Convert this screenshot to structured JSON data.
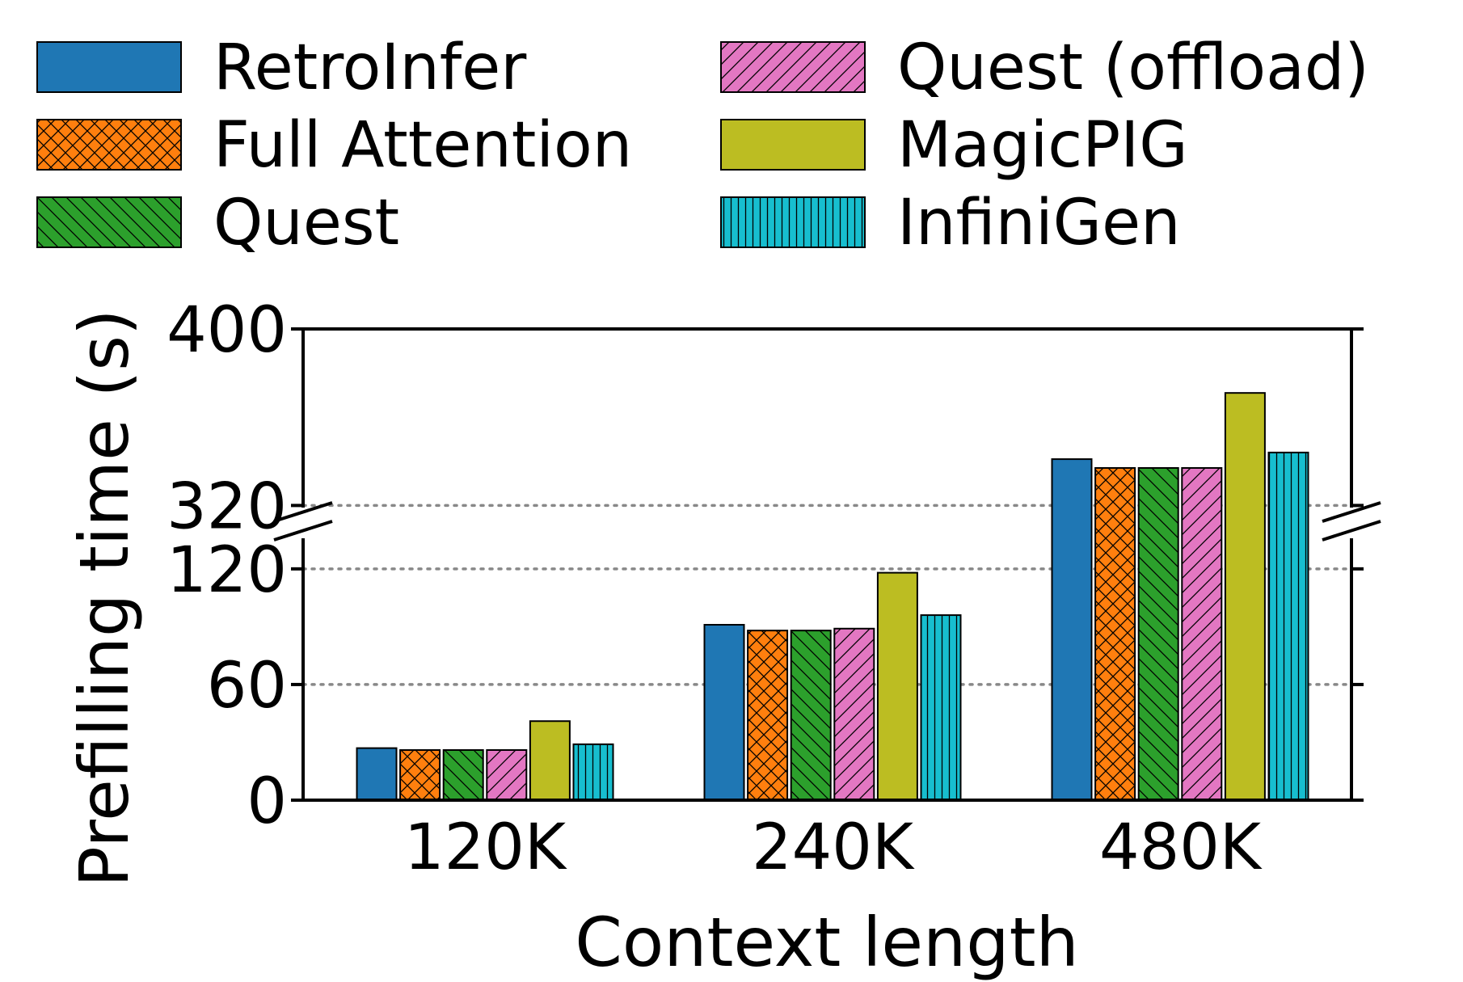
{
  "chart_data": {
    "type": "bar",
    "xlabel": "Context length",
    "ylabel": "Prefilling time (s)",
    "categories": [
      "120K",
      "240K",
      "480K"
    ],
    "y_axis_broken": true,
    "y_segments": [
      {
        "range": [
          0,
          130
        ],
        "ticks": [
          0,
          60,
          120
        ]
      },
      {
        "range": [
          300,
          400
        ],
        "ticks": [
          320,
          400
        ]
      }
    ],
    "grid": "dotted horizontal at 60, 120, 320",
    "legend_position": "top",
    "series": [
      {
        "name": "RetroInfer",
        "color": "#1f77b4",
        "hatch": "none",
        "values": [
          27,
          91,
          341
        ]
      },
      {
        "name": "Full Attention",
        "color": "#ff7f0e",
        "hatch": "crosshatch",
        "values": [
          26,
          88,
          337
        ]
      },
      {
        "name": "Quest",
        "color": "#2ca02c",
        "hatch": "backslash",
        "values": [
          26,
          88,
          337
        ]
      },
      {
        "name": "Quest (offload)",
        "color": "#e377c2",
        "hatch": "slash",
        "values": [
          26,
          89,
          337
        ]
      },
      {
        "name": "MagicPIG",
        "color": "#bcbd22",
        "hatch": "none",
        "values": [
          41,
          118,
          371
        ]
      },
      {
        "name": "InfiniGen",
        "color": "#17becf",
        "hatch": "vertical",
        "values": [
          29,
          96,
          344
        ]
      }
    ]
  }
}
